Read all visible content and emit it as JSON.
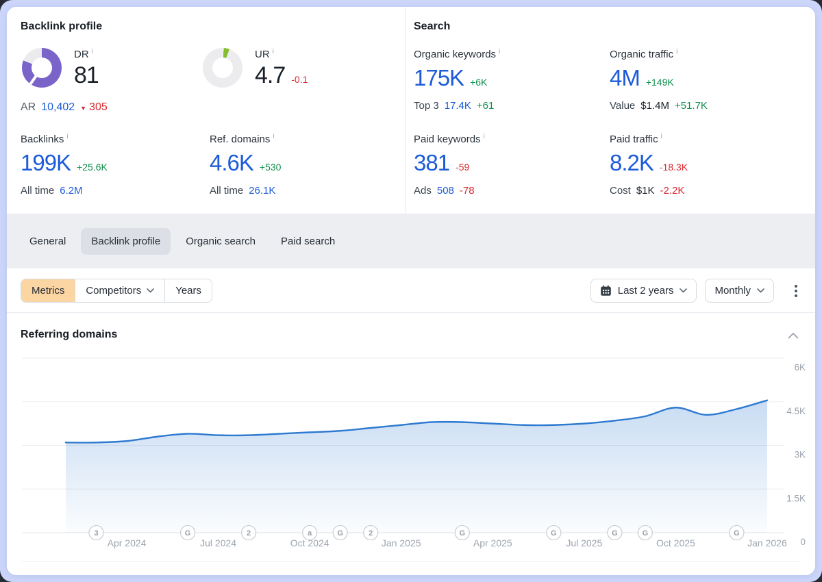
{
  "backlink_profile": {
    "title": "Backlink profile",
    "dr": {
      "label": "DR",
      "value": "81",
      "percent": 81
    },
    "ar": {
      "label": "AR",
      "value": "10,402",
      "delta": "305"
    },
    "ur": {
      "label": "UR",
      "value": "4.7",
      "delta": "-0.1",
      "percent": 4.7
    },
    "backlinks": {
      "label": "Backlinks",
      "value": "199K",
      "delta": "+25.6K",
      "sub_label": "All time",
      "sub_value": "6.2M"
    },
    "ref_domains": {
      "label": "Ref. domains",
      "value": "4.6K",
      "delta": "+530",
      "sub_label": "All time",
      "sub_value": "26.1K"
    }
  },
  "search": {
    "title": "Search",
    "organic_keywords": {
      "label": "Organic keywords",
      "value": "175K",
      "delta": "+6K",
      "sub_label": "Top 3",
      "sub_value": "17.4K",
      "sub_delta": "+61"
    },
    "organic_traffic": {
      "label": "Organic traffic",
      "value": "4M",
      "delta": "+149K",
      "sub_label": "Value",
      "sub_value": "$1.4M",
      "sub_delta": "+51.7K"
    },
    "paid_keywords": {
      "label": "Paid keywords",
      "value": "381",
      "delta": "-59",
      "sub_label": "Ads",
      "sub_value": "508",
      "sub_delta": "-78"
    },
    "paid_traffic": {
      "label": "Paid traffic",
      "value": "8.2K",
      "delta": "-18.3K",
      "sub_label": "Cost",
      "sub_value": "$1K",
      "sub_delta": "-2.2K"
    }
  },
  "tabs": {
    "items": [
      {
        "label": "General"
      },
      {
        "label": "Backlink profile"
      },
      {
        "label": "Organic search"
      },
      {
        "label": "Paid search"
      }
    ],
    "active": "Backlink profile"
  },
  "toolbar": {
    "metrics": "Metrics",
    "competitors": "Competitors",
    "years": "Years",
    "range": "Last 2 years",
    "interval": "Monthly"
  },
  "chart_section": {
    "title": "Referring domains"
  },
  "colors": {
    "accent_blue": "#1c5bd9",
    "positive_green": "#0e8f4d",
    "negative_red": "#d9282e",
    "dr_purple": "#7a64ca",
    "ur_green": "#85bd2f",
    "line_blue": "#2e7ad0",
    "tab_band": "#eceef2",
    "metrics_segment_peach": "#fbd5a2"
  },
  "chart_data": {
    "type": "area",
    "title": "Referring domains",
    "x": [
      "Feb 2024",
      "Mar 2024",
      "Apr 2024",
      "May 2024",
      "Jun 2024",
      "Jul 2024",
      "Aug 2024",
      "Sep 2024",
      "Oct 2024",
      "Nov 2024",
      "Dec 2024",
      "Jan 2025",
      "Feb 2025",
      "Mar 2025",
      "Apr 2025",
      "May 2025",
      "Jun 2025",
      "Jul 2025",
      "Aug 2025",
      "Sep 2025",
      "Oct 2025",
      "Nov 2025",
      "Dec 2025",
      "Jan 2026"
    ],
    "values": [
      3100,
      3100,
      3150,
      3300,
      3400,
      3350,
      3350,
      3400,
      3450,
      3500,
      3600,
      3700,
      3800,
      3800,
      3750,
      3700,
      3700,
      3750,
      3850,
      4000,
      4300,
      4050,
      4250,
      4550
    ],
    "ylim": [
      0,
      6000
    ],
    "yticks": [
      {
        "v": 0,
        "label": "0"
      },
      {
        "v": 1500,
        "label": "1.5K"
      },
      {
        "v": 3000,
        "label": "3K"
      },
      {
        "v": 4500,
        "label": "4.5K"
      },
      {
        "v": 6000,
        "label": "6K"
      }
    ],
    "xticks": [
      {
        "i": 2,
        "label": "Apr 2024"
      },
      {
        "i": 5,
        "label": "Jul 2024"
      },
      {
        "i": 8,
        "label": "Oct 2024"
      },
      {
        "i": 11,
        "label": "Jan 2025"
      },
      {
        "i": 14,
        "label": "Apr 2025"
      },
      {
        "i": 17,
        "label": "Jul 2025"
      },
      {
        "i": 20,
        "label": "Oct 2025"
      },
      {
        "i": 23,
        "label": "Jan 2026"
      }
    ],
    "grid": true,
    "legend_position": "none",
    "axis_side": "right",
    "line_color": "#2e7ad0",
    "markers": [
      {
        "i": 1,
        "glyph": "3"
      },
      {
        "i": 4,
        "glyph": "G"
      },
      {
        "i": 6,
        "glyph": "2"
      },
      {
        "i": 8,
        "glyph": "a"
      },
      {
        "i": 9,
        "glyph": "G"
      },
      {
        "i": 10,
        "glyph": "2"
      },
      {
        "i": 13,
        "glyph": "G"
      },
      {
        "i": 16,
        "glyph": "G"
      },
      {
        "i": 18,
        "glyph": "G"
      },
      {
        "i": 19,
        "glyph": "G"
      },
      {
        "i": 22,
        "glyph": "G"
      }
    ]
  }
}
